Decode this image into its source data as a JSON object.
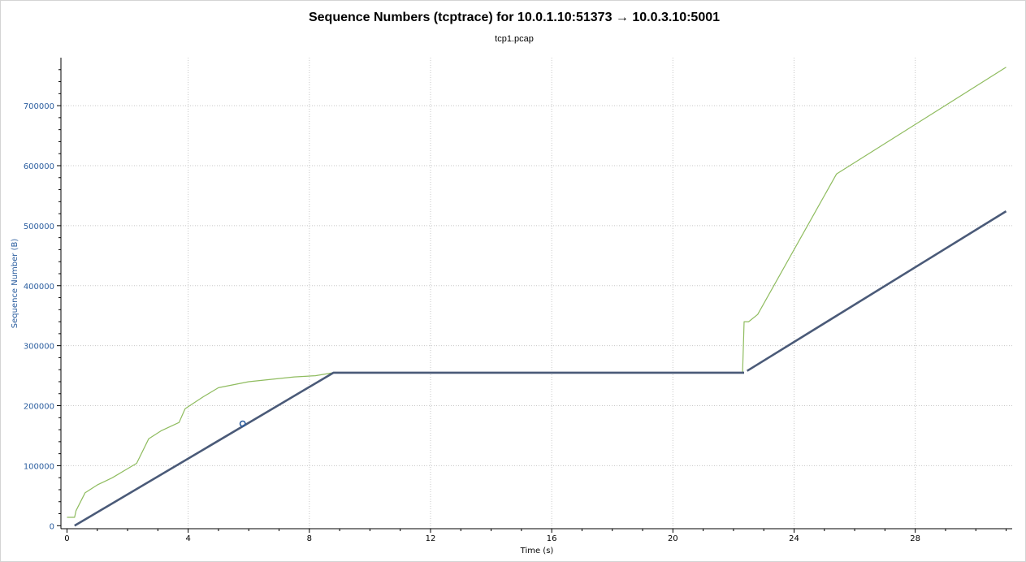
{
  "chart_data": {
    "type": "line",
    "title": "Sequence Numbers (tcptrace) for 10.0.1.10:51373 → 10.0.3.10:5001",
    "subtitle": "tcp1.pcap",
    "xlabel": "Time (s)",
    "ylabel": "Sequence Number (B)",
    "xlim": [
      -0.2,
      31.2
    ],
    "ylim": [
      -5000,
      780000
    ],
    "x_ticks": [
      0,
      4,
      8,
      12,
      16,
      20,
      24,
      28
    ],
    "x_tick_labels": [
      "0",
      "4",
      "8",
      "12",
      "16",
      "20",
      "24",
      "28"
    ],
    "y_ticks": [
      0,
      100000,
      200000,
      300000,
      400000,
      500000,
      600000,
      700000
    ],
    "y_tick_labels": [
      "0",
      "100000",
      "200000",
      "300000",
      "400000",
      "500000",
      "600000",
      "700000"
    ],
    "grid": true,
    "series": [
      {
        "color": "#8fbc5f",
        "points": [
          [
            0.0,
            14000
          ],
          [
            0.25,
            14000
          ],
          [
            0.3,
            25000
          ],
          [
            0.6,
            55000
          ],
          [
            1.0,
            68000
          ],
          [
            1.5,
            80000
          ],
          [
            2.0,
            95000
          ],
          [
            2.3,
            104000
          ],
          [
            2.7,
            145000
          ],
          [
            3.1,
            158000
          ],
          [
            3.7,
            172000
          ],
          [
            3.9,
            195000
          ],
          [
            4.5,
            215000
          ],
          [
            5.0,
            230000
          ],
          [
            6.0,
            240000
          ],
          [
            7.5,
            248000
          ],
          [
            8.2,
            250000
          ],
          [
            8.8,
            255000
          ],
          [
            12.0,
            255000
          ],
          [
            16.0,
            255000
          ],
          [
            20.0,
            255000
          ],
          [
            22.3,
            255000
          ],
          [
            22.35,
            340000
          ],
          [
            22.5,
            340000
          ],
          [
            22.8,
            352000
          ],
          [
            25.4,
            586000
          ],
          [
            31.0,
            764000
          ]
        ]
      },
      {
        "color": "#4a5a78",
        "points": [
          [
            0.25,
            0
          ],
          [
            8.8,
            255000
          ],
          [
            12.0,
            255000
          ],
          [
            16.0,
            255000
          ],
          [
            20.0,
            255000
          ],
          [
            22.35,
            255000
          ]
        ]
      },
      {
        "color": "#4a5a78",
        "points": [
          [
            22.45,
            258000
          ],
          [
            31.0,
            524000
          ]
        ]
      }
    ],
    "annotations": [
      {
        "type": "circle-marker",
        "x": 5.8,
        "y": 170000,
        "color": "#2a5d9f"
      }
    ]
  }
}
